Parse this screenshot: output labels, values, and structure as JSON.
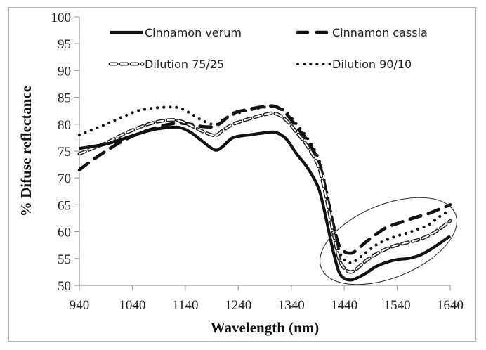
{
  "chart_data": {
    "type": "line",
    "title": "",
    "xlabel": "Wavelength (nm)",
    "ylabel": "% Difuse reflectance",
    "xlim": [
      940,
      1640
    ],
    "ylim": [
      50,
      100
    ],
    "xticks": [
      940,
      1040,
      1140,
      1240,
      1340,
      1440,
      1540,
      1640
    ],
    "yticks": [
      50,
      55,
      60,
      65,
      70,
      75,
      80,
      85,
      90,
      95,
      100
    ],
    "grid": false,
    "legend_position": "top",
    "annotations": [
      {
        "type": "ellipse",
        "description": "Highlighted region around 1420-1650 nm, 50-66 %"
      }
    ],
    "series": [
      {
        "name": "Cinnamon verum",
        "style": "solid",
        "x": [
          940,
          960,
          990,
          1020,
          1050,
          1080,
          1110,
          1130,
          1150,
          1170,
          1190,
          1200,
          1210,
          1230,
          1260,
          1290,
          1310,
          1330,
          1350,
          1370,
          1390,
          1400,
          1410,
          1420,
          1430,
          1440,
          1450,
          1460,
          1480,
          1500,
          1520,
          1540,
          1560,
          1580,
          1600,
          1620,
          1640
        ],
        "values": [
          75.5,
          75.8,
          76.3,
          77.2,
          78.2,
          79.0,
          79.4,
          79.4,
          78.5,
          77.0,
          75.5,
          75.2,
          75.8,
          77.5,
          78.0,
          78.4,
          78.5,
          77.3,
          74.5,
          72.0,
          68.5,
          65.0,
          60.5,
          56.0,
          52.5,
          51.3,
          51.0,
          51.2,
          52.2,
          53.5,
          54.3,
          54.8,
          55.0,
          55.5,
          56.5,
          57.8,
          59.2
        ]
      },
      {
        "name": "Cinnamon cassia",
        "style": "long-dash",
        "x": [
          940,
          960,
          990,
          1020,
          1050,
          1080,
          1110,
          1130,
          1150,
          1170,
          1190,
          1200,
          1210,
          1230,
          1260,
          1290,
          1310,
          1330,
          1350,
          1370,
          1390,
          1400,
          1410,
          1420,
          1430,
          1440,
          1450,
          1460,
          1480,
          1500,
          1520,
          1540,
          1560,
          1580,
          1600,
          1620,
          1640
        ],
        "values": [
          71.5,
          73.0,
          75.0,
          76.8,
          78.2,
          79.2,
          80.0,
          80.2,
          80.0,
          79.6,
          79.5,
          79.8,
          80.5,
          82.0,
          82.8,
          83.3,
          83.3,
          82.0,
          79.5,
          77.0,
          73.5,
          70.0,
          65.5,
          61.0,
          57.5,
          56.3,
          56.0,
          56.3,
          58.0,
          59.5,
          60.8,
          61.5,
          62.2,
          62.8,
          63.4,
          64.2,
          65.0
        ]
      },
      {
        "name": "Dilution 75/25",
        "style": "dash-outline",
        "x": [
          940,
          960,
          990,
          1020,
          1050,
          1080,
          1110,
          1130,
          1150,
          1170,
          1190,
          1200,
          1210,
          1230,
          1260,
          1290,
          1310,
          1330,
          1350,
          1370,
          1390,
          1400,
          1410,
          1420,
          1430,
          1440,
          1450,
          1460,
          1480,
          1500,
          1520,
          1540,
          1560,
          1580,
          1600,
          1620,
          1640
        ],
        "values": [
          74.5,
          75.3,
          76.5,
          78.0,
          79.3,
          80.3,
          80.8,
          80.6,
          79.8,
          78.8,
          78.0,
          78.0,
          78.8,
          80.0,
          81.0,
          81.8,
          82.0,
          80.8,
          78.5,
          76.0,
          72.5,
          69.0,
          64.5,
          59.5,
          55.0,
          53.2,
          52.5,
          52.8,
          54.5,
          55.8,
          56.8,
          57.5,
          58.0,
          58.5,
          59.3,
          60.5,
          62.0
        ]
      },
      {
        "name": "Dilution 90/10",
        "style": "dotted",
        "x": [
          940,
          960,
          990,
          1020,
          1050,
          1080,
          1110,
          1130,
          1150,
          1170,
          1190,
          1200,
          1210,
          1230,
          1260,
          1290,
          1310,
          1330,
          1350,
          1370,
          1390,
          1400,
          1410,
          1420,
          1430,
          1440,
          1450,
          1460,
          1480,
          1500,
          1520,
          1540,
          1560,
          1580,
          1600,
          1620,
          1640
        ],
        "values": [
          78.0,
          78.8,
          80.0,
          81.3,
          82.5,
          83.0,
          83.2,
          83.0,
          82.0,
          80.8,
          80.0,
          80.0,
          80.8,
          81.8,
          82.6,
          83.2,
          83.3,
          82.3,
          80.0,
          77.5,
          74.0,
          70.5,
          66.0,
          61.0,
          56.5,
          54.8,
          54.2,
          54.5,
          56.0,
          57.5,
          58.5,
          59.2,
          59.8,
          60.5,
          61.3,
          62.8,
          64.0
        ]
      }
    ]
  }
}
